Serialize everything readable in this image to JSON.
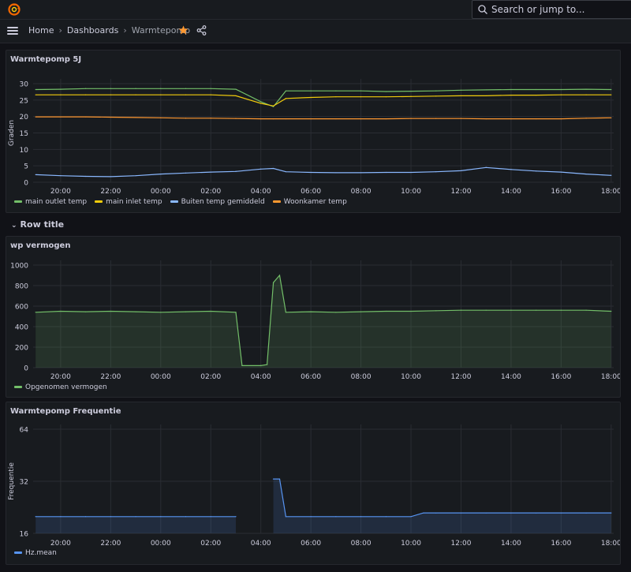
{
  "search": {
    "placeholder": "Search or jump to..."
  },
  "breadcrumb": {
    "home": "Home",
    "dashboards": "Dashboards",
    "current": "Warmtepomp",
    "separator": "›"
  },
  "row": {
    "title": "Row title"
  },
  "colors": {
    "green": "#73bf69",
    "yellow": "#f2cc0c",
    "blue": "#8ab8ff",
    "orange": "#ff9830",
    "freq_blue": "#5794f2",
    "star": "#ff9830"
  },
  "x_ticks": [
    "20:00",
    "22:00",
    "00:00",
    "02:00",
    "04:00",
    "06:00",
    "08:00",
    "10:00",
    "12:00",
    "14:00",
    "16:00",
    "18:00"
  ],
  "panels": [
    {
      "title": "Warmtepomp 5J"
    },
    {
      "title": "wp vermogen"
    },
    {
      "title": "Warmtepomp Frequentie"
    }
  ],
  "chart_data": [
    {
      "type": "line",
      "title": "Warmtepomp 5J",
      "ylabel": "Graden",
      "xlabel": "",
      "ylim": [
        0,
        30
      ],
      "y_ticks": [
        "0",
        "5",
        "10",
        "15",
        "20",
        "25",
        "30"
      ],
      "x": [
        "19:00",
        "20:00",
        "21:00",
        "22:00",
        "23:00",
        "00:00",
        "01:00",
        "02:00",
        "03:00",
        "04:00",
        "04:30",
        "05:00",
        "06:00",
        "07:00",
        "08:00",
        "09:00",
        "10:00",
        "11:00",
        "12:00",
        "13:00",
        "14:00",
        "15:00",
        "16:00",
        "17:00",
        "18:00"
      ],
      "series": [
        {
          "name": "main outlet temp",
          "values": [
            28.2,
            28.3,
            28.5,
            28.5,
            28.5,
            28.5,
            28.5,
            28.5,
            28.3,
            24.5,
            23.0,
            27.8,
            27.8,
            27.8,
            27.8,
            27.6,
            27.7,
            27.8,
            28.0,
            28.1,
            28.2,
            28.2,
            28.2,
            28.3,
            28.2
          ]
        },
        {
          "name": "main inlet temp",
          "values": [
            26.6,
            26.6,
            26.6,
            26.6,
            26.6,
            26.6,
            26.6,
            26.6,
            26.3,
            24.0,
            23.2,
            25.5,
            25.8,
            26.0,
            26.0,
            26.0,
            26.1,
            26.2,
            26.3,
            26.3,
            26.5,
            26.5,
            26.6,
            26.6,
            26.6
          ]
        },
        {
          "name": "Buiten temp gemiddeld",
          "values": [
            2.3,
            2.0,
            1.8,
            1.7,
            2.0,
            2.5,
            2.8,
            3.1,
            3.3,
            4.0,
            4.2,
            3.2,
            3.0,
            2.9,
            2.9,
            3.0,
            3.0,
            3.2,
            3.5,
            4.5,
            3.9,
            3.4,
            3.1,
            2.5,
            2.1
          ]
        },
        {
          "name": "Woonkamer temp",
          "values": [
            19.9,
            19.9,
            19.9,
            19.8,
            19.7,
            19.6,
            19.5,
            19.5,
            19.4,
            19.3,
            19.3,
            19.3,
            19.3,
            19.3,
            19.3,
            19.3,
            19.4,
            19.4,
            19.4,
            19.3,
            19.3,
            19.3,
            19.3,
            19.5,
            19.6
          ]
        }
      ],
      "legend_position": "bottom-left",
      "grid": true
    },
    {
      "type": "area",
      "title": "wp vermogen",
      "ylabel": "",
      "xlabel": "",
      "ylim": [
        0,
        1000
      ],
      "y_ticks": [
        "0",
        "200",
        "400",
        "600",
        "800",
        "1000"
      ],
      "x": [
        "19:00",
        "20:00",
        "21:00",
        "22:00",
        "23:00",
        "00:00",
        "01:00",
        "02:00",
        "03:00",
        "03:15",
        "04:00",
        "04:15",
        "04:30",
        "04:45",
        "05:00",
        "06:00",
        "07:00",
        "08:00",
        "09:00",
        "10:00",
        "11:00",
        "12:00",
        "13:00",
        "14:00",
        "15:00",
        "16:00",
        "17:00",
        "18:00"
      ],
      "series": [
        {
          "name": "Opgenomen vermogen",
          "values": [
            540,
            550,
            545,
            550,
            545,
            540,
            545,
            550,
            540,
            20,
            20,
            30,
            830,
            900,
            540,
            545,
            540,
            545,
            550,
            550,
            555,
            560,
            560,
            560,
            560,
            560,
            560,
            550
          ]
        }
      ],
      "legend_position": "bottom-left",
      "grid": true
    },
    {
      "type": "area",
      "title": "Warmtepomp Frequentie",
      "ylabel": "Frequentie",
      "xlabel": "",
      "y_scale": "log",
      "ylim": [
        16,
        64
      ],
      "y_ticks": [
        "16",
        "32",
        "64"
      ],
      "x": [
        "19:00",
        "20:00",
        "21:00",
        "22:00",
        "23:00",
        "00:00",
        "01:00",
        "02:00",
        "03:00",
        "04:15",
        "04:30",
        "04:45",
        "05:00",
        "06:00",
        "07:00",
        "08:00",
        "09:00",
        "10:00",
        "10:30",
        "11:00",
        "12:00",
        "13:00",
        "14:00",
        "15:00",
        "16:00",
        "17:00",
        "18:00"
      ],
      "series": [
        {
          "name": "Hz.mean",
          "values": [
            20,
            20,
            20,
            20,
            20,
            20,
            20,
            20,
            20,
            null,
            33,
            33,
            20,
            20,
            20,
            20,
            20,
            20,
            21,
            21,
            21,
            21,
            21,
            21,
            21,
            21,
            21
          ]
        }
      ],
      "legend_position": "bottom-left",
      "grid": true
    }
  ]
}
